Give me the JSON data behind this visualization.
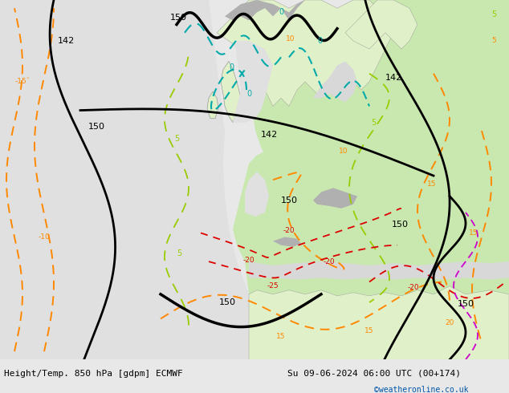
{
  "title_left": "Height/Temp. 850 hPa [gdpm] ECMWF",
  "title_right": "Su 09-06-2024 06:00 UTC (00+174)",
  "credit": "©weatheronline.co.uk",
  "credit_color": "#0055aa",
  "fig_width": 6.34,
  "fig_height": 4.9,
  "dpi": 100,
  "title_fontsize": 8.0,
  "credit_fontsize": 7.0,
  "sea_color": "#d8d8d8",
  "land_green": "#c8e8b0",
  "land_light_green": "#e0f0c8",
  "terrain_gray": "#b0b0b0",
  "bg_map": "#d0d0d0",
  "black": "#000000",
  "orange": "#ff8800",
  "red": "#dd0000",
  "magenta": "#cc00cc",
  "teal": "#00aaaa",
  "yellow_green": "#99cc00",
  "bottom_bar": "#e8e8e8"
}
